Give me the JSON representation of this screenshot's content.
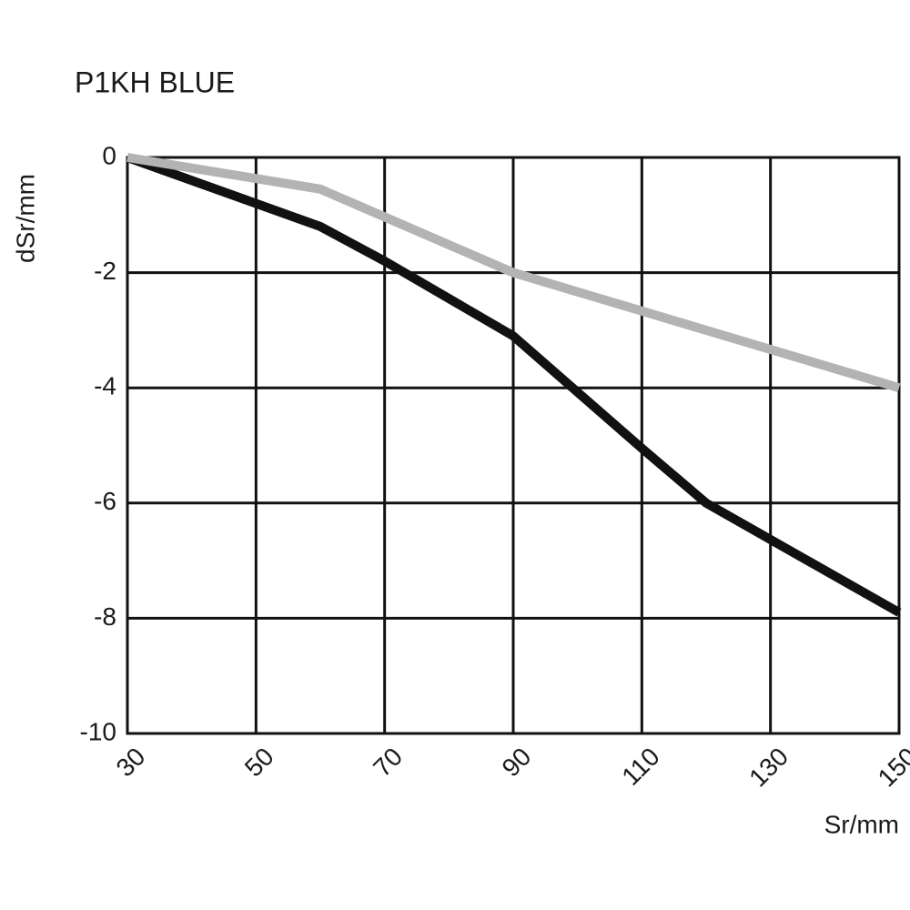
{
  "chart_data": {
    "type": "line",
    "title": "P1KH BLUE",
    "x_label": "Sr/mm",
    "y_label": "dSr/mm",
    "series": [
      {
        "color": "#111111",
        "x": [
          30,
          60,
          70,
          90,
          110,
          120,
          150
        ],
        "values": [
          0,
          -1.2,
          -1.8,
          -3.1,
          -5.05,
          -6,
          -7.9
        ]
      },
      {
        "color": "#b3b3b3",
        "x": [
          30,
          60,
          90,
          150
        ],
        "values": [
          0,
          -0.55,
          -2,
          -4
        ]
      }
    ],
    "xlim": [
      30,
      150
    ],
    "xticks": [
      30,
      50,
      70,
      90,
      110,
      130,
      150
    ],
    "ylim": [
      -10,
      0
    ],
    "yticks": [
      0,
      -2,
      -4,
      -6,
      -8,
      -10
    ],
    "grid": true
  }
}
